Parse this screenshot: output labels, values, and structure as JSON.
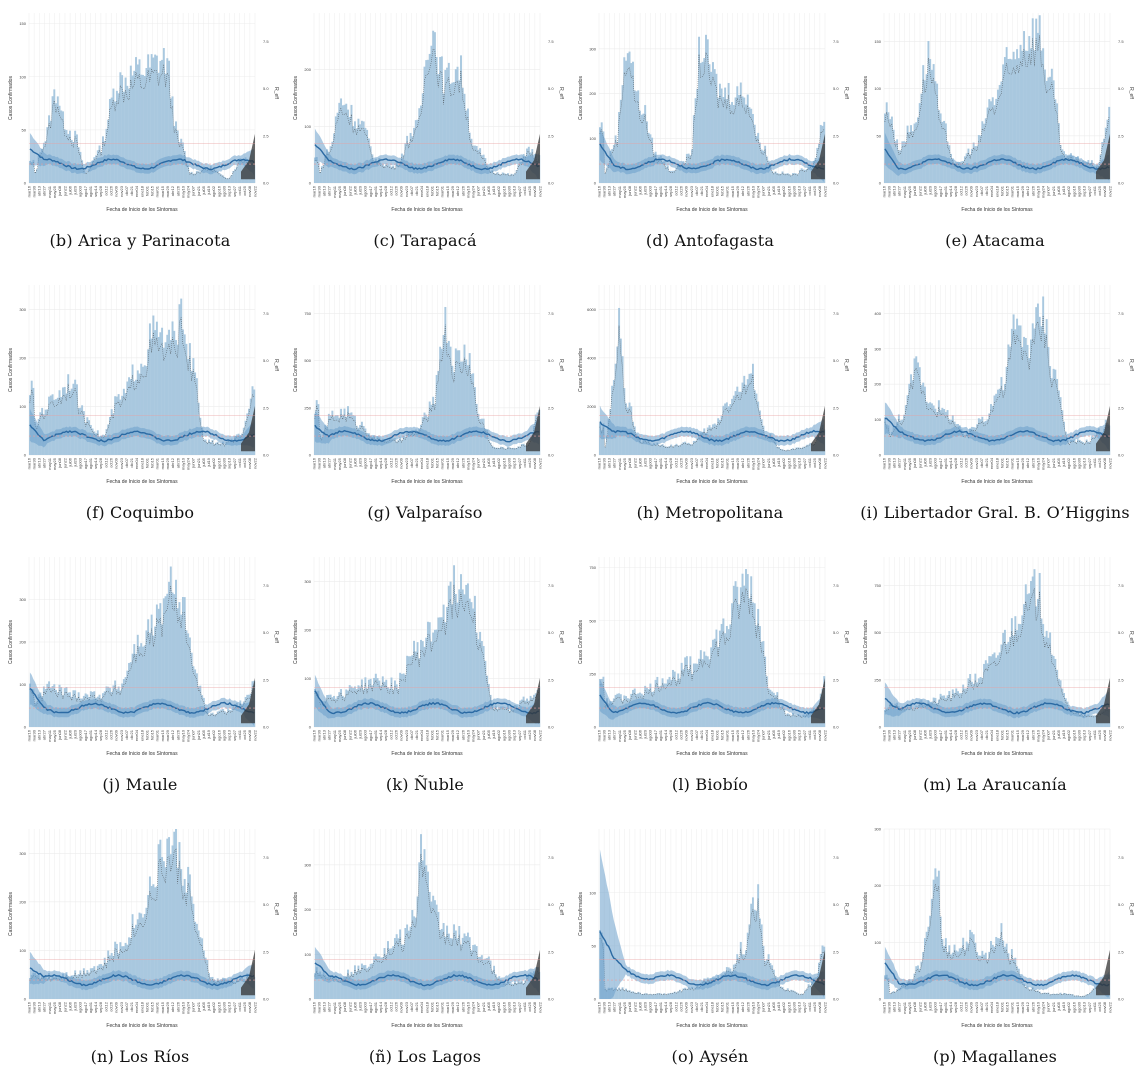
{
  "colors": {
    "bar_fill": "#a9c8df",
    "bar_stroke": "#8fb3d0",
    "band_fill": "#6a9fca",
    "rt_line": "#2b6aa3",
    "dotted_line": "#333333",
    "ref_line": "#e8a0a0",
    "grid": "#ececec"
  },
  "shared_axes": {
    "xlabel": "Fecha de Inicio de los Síntomas",
    "ylabel_left": "Casos Confirmados",
    "ylabel_right": "R_eff",
    "date_ticks": [
      "mar16",
      "mar30",
      "abr13",
      "abr27",
      "may11",
      "may25",
      "jun08",
      "jun22",
      "jul06",
      "jul20",
      "ago03",
      "ago17",
      "ago31",
      "sep14",
      "sep28",
      "oct12",
      "oct26",
      "nov09",
      "nov23",
      "dic07",
      "dic21",
      "ene04",
      "ene18",
      "feb01",
      "feb15",
      "mar01",
      "mar15",
      "mar29",
      "abr12",
      "abr26",
      "may10",
      "may24",
      "jun07",
      "jun21",
      "jul05",
      "jul19",
      "ago02",
      "ago16",
      "ago30",
      "sep13",
      "sep27",
      "oct11",
      "oct25",
      "nov08",
      "nov22"
    ],
    "right_ticks": [
      "0.0",
      "2.5",
      "5.0",
      "7.5"
    ]
  },
  "chart_data": [
    {
      "caption": "(b) Arica y Parinacota",
      "type": "bar",
      "left_ticks": [
        "0",
        "50",
        "100",
        "150"
      ],
      "ylim": [
        0,
        160
      ],
      "peaks": [
        [
          0.02,
          10
        ],
        [
          0.06,
          40
        ],
        [
          0.12,
          90
        ],
        [
          0.15,
          60
        ],
        [
          0.2,
          45
        ],
        [
          0.25,
          10
        ],
        [
          0.3,
          30
        ],
        [
          0.4,
          100
        ],
        [
          0.5,
          110
        ],
        [
          0.6,
          120
        ],
        [
          0.67,
          40
        ],
        [
          0.72,
          10
        ],
        [
          0.8,
          15
        ],
        [
          0.88,
          5
        ],
        [
          0.95,
          25
        ],
        [
          1,
          20
        ]
      ]
    },
    {
      "caption": "(c) Tarapacá",
      "type": "bar",
      "left_ticks": [
        "0",
        "100",
        "200"
      ],
      "ylim": [
        0,
        300
      ],
      "peaks": [
        [
          0.02,
          20
        ],
        [
          0.06,
          60
        ],
        [
          0.12,
          150
        ],
        [
          0.2,
          110
        ],
        [
          0.28,
          40
        ],
        [
          0.35,
          30
        ],
        [
          0.45,
          100
        ],
        [
          0.52,
          280
        ],
        [
          0.58,
          190
        ],
        [
          0.64,
          210
        ],
        [
          0.72,
          60
        ],
        [
          0.8,
          20
        ],
        [
          0.88,
          15
        ],
        [
          0.95,
          60
        ],
        [
          1,
          45
        ]
      ]
    },
    {
      "caption": "(d) Antofagasta",
      "type": "bar",
      "left_ticks": [
        "0",
        "100",
        "200",
        "300"
      ],
      "ylim": [
        0,
        380
      ],
      "peaks": [
        [
          0.02,
          25
        ],
        [
          0.07,
          100
        ],
        [
          0.12,
          320
        ],
        [
          0.18,
          180
        ],
        [
          0.26,
          60
        ],
        [
          0.32,
          30
        ],
        [
          0.4,
          60
        ],
        [
          0.45,
          310
        ],
        [
          0.55,
          210
        ],
        [
          0.65,
          210
        ],
        [
          0.72,
          90
        ],
        [
          0.78,
          25
        ],
        [
          0.86,
          20
        ],
        [
          0.94,
          40
        ],
        [
          1,
          130
        ]
      ]
    },
    {
      "caption": "(e) Atacama",
      "type": "bar",
      "left_ticks": [
        "0",
        "50",
        "100",
        "150"
      ],
      "ylim": [
        0,
        180
      ],
      "peaks": [
        [
          0.02,
          80
        ],
        [
          0.06,
          40
        ],
        [
          0.12,
          60
        ],
        [
          0.2,
          140
        ],
        [
          0.26,
          60
        ],
        [
          0.32,
          20
        ],
        [
          0.4,
          40
        ],
        [
          0.48,
          90
        ],
        [
          0.55,
          130
        ],
        [
          0.62,
          160
        ],
        [
          0.68,
          170
        ],
        [
          0.74,
          110
        ],
        [
          0.8,
          30
        ],
        [
          0.88,
          25
        ],
        [
          0.95,
          20
        ],
        [
          1,
          80
        ]
      ]
    },
    {
      "caption": "(f) Coquimbo",
      "type": "bar",
      "left_ticks": [
        "0",
        "100",
        "200",
        "300"
      ],
      "ylim": [
        0,
        350
      ],
      "peaks": [
        [
          0.02,
          60
        ],
        [
          0.06,
          100
        ],
        [
          0.12,
          130
        ],
        [
          0.18,
          160
        ],
        [
          0.25,
          80
        ],
        [
          0.32,
          40
        ],
        [
          0.4,
          120
        ],
        [
          0.5,
          200
        ],
        [
          0.55,
          260
        ],
        [
          0.62,
          240
        ],
        [
          0.68,
          290
        ],
        [
          0.73,
          180
        ],
        [
          0.78,
          30
        ],
        [
          0.86,
          25
        ],
        [
          0.94,
          40
        ],
        [
          1,
          140
        ]
      ]
    },
    {
      "caption": "(g) Valparaíso",
      "type": "bar",
      "left_ticks": [
        "0",
        "250",
        "500",
        "750"
      ],
      "ylim": [
        0,
        900
      ],
      "peaks": [
        [
          0.02,
          100
        ],
        [
          0.08,
          220
        ],
        [
          0.14,
          240
        ],
        [
          0.2,
          170
        ],
        [
          0.28,
          90
        ],
        [
          0.36,
          80
        ],
        [
          0.45,
          130
        ],
        [
          0.52,
          260
        ],
        [
          0.58,
          720
        ],
        [
          0.62,
          520
        ],
        [
          0.68,
          560
        ],
        [
          0.74,
          200
        ],
        [
          0.8,
          40
        ],
        [
          0.88,
          40
        ],
        [
          0.95,
          60
        ],
        [
          1,
          260
        ]
      ]
    },
    {
      "caption": "(h) Metropolitana",
      "type": "bar",
      "left_ticks": [
        "0",
        "2000",
        "4000",
        "6000"
      ],
      "ylim": [
        0,
        7000
      ],
      "peaks": [
        [
          0.02,
          300
        ],
        [
          0.06,
          2800
        ],
        [
          0.09,
          5800
        ],
        [
          0.12,
          2200
        ],
        [
          0.18,
          600
        ],
        [
          0.3,
          400
        ],
        [
          0.4,
          500
        ],
        [
          0.5,
          1200
        ],
        [
          0.58,
          2400
        ],
        [
          0.64,
          3000
        ],
        [
          0.68,
          3400
        ],
        [
          0.74,
          900
        ],
        [
          0.82,
          200
        ],
        [
          0.9,
          300
        ],
        [
          0.95,
          500
        ],
        [
          1,
          1200
        ]
      ]
    },
    {
      "caption": "(i) Libertador Gral. B. O’Higgins",
      "type": "bar",
      "left_ticks": [
        "0",
        "100",
        "200",
        "300",
        "400"
      ],
      "ylim": [
        0,
        480
      ],
      "peaks": [
        [
          0.02,
          60
        ],
        [
          0.08,
          120
        ],
        [
          0.14,
          260
        ],
        [
          0.2,
          160
        ],
        [
          0.28,
          120
        ],
        [
          0.36,
          60
        ],
        [
          0.44,
          110
        ],
        [
          0.52,
          200
        ],
        [
          0.58,
          370
        ],
        [
          0.64,
          330
        ],
        [
          0.7,
          420
        ],
        [
          0.76,
          230
        ],
        [
          0.82,
          40
        ],
        [
          0.9,
          40
        ],
        [
          0.96,
          70
        ],
        [
          1,
          100
        ]
      ]
    },
    {
      "caption": "(j) Maule",
      "type": "bar",
      "left_ticks": [
        "0",
        "100",
        "200",
        "300"
      ],
      "ylim": [
        0,
        400
      ],
      "peaks": [
        [
          0.02,
          60
        ],
        [
          0.08,
          100
        ],
        [
          0.14,
          90
        ],
        [
          0.2,
          80
        ],
        [
          0.3,
          80
        ],
        [
          0.4,
          100
        ],
        [
          0.48,
          200
        ],
        [
          0.54,
          240
        ],
        [
          0.6,
          290
        ],
        [
          0.64,
          360
        ],
        [
          0.68,
          300
        ],
        [
          0.74,
          120
        ],
        [
          0.8,
          30
        ],
        [
          0.88,
          40
        ],
        [
          0.95,
          60
        ],
        [
          1,
          100
        ]
      ]
    },
    {
      "caption": "(k) Ñuble",
      "type": "bar",
      "left_ticks": [
        "0",
        "100",
        "200",
        "300"
      ],
      "ylim": [
        0,
        350
      ],
      "peaks": [
        [
          0.02,
          60
        ],
        [
          0.1,
          70
        ],
        [
          0.2,
          90
        ],
        [
          0.28,
          100
        ],
        [
          0.36,
          90
        ],
        [
          0.44,
          160
        ],
        [
          0.52,
          200
        ],
        [
          0.58,
          260
        ],
        [
          0.64,
          310
        ],
        [
          0.7,
          300
        ],
        [
          0.74,
          180
        ],
        [
          0.8,
          40
        ],
        [
          0.88,
          40
        ],
        [
          0.95,
          60
        ],
        [
          1,
          80
        ]
      ]
    },
    {
      "caption": "(l) Biobío",
      "type": "bar",
      "left_ticks": [
        "0",
        "250",
        "500",
        "750"
      ],
      "ylim": [
        0,
        800
      ],
      "peaks": [
        [
          0.02,
          120
        ],
        [
          0.1,
          150
        ],
        [
          0.2,
          180
        ],
        [
          0.3,
          240
        ],
        [
          0.4,
          300
        ],
        [
          0.48,
          380
        ],
        [
          0.56,
          480
        ],
        [
          0.62,
          650
        ],
        [
          0.66,
          720
        ],
        [
          0.7,
          560
        ],
        [
          0.76,
          200
        ],
        [
          0.84,
          60
        ],
        [
          0.92,
          60
        ],
        [
          0.97,
          90
        ],
        [
          1,
          240
        ]
      ]
    },
    {
      "caption": "(m) La Araucanía",
      "type": "bar",
      "left_ticks": [
        "0",
        "250",
        "500",
        "750"
      ],
      "ylim": [
        0,
        900
      ],
      "peaks": [
        [
          0.02,
          120
        ],
        [
          0.1,
          110
        ],
        [
          0.2,
          140
        ],
        [
          0.3,
          180
        ],
        [
          0.4,
          260
        ],
        [
          0.48,
          360
        ],
        [
          0.55,
          520
        ],
        [
          0.62,
          680
        ],
        [
          0.68,
          760
        ],
        [
          0.72,
          560
        ],
        [
          0.78,
          240
        ],
        [
          0.84,
          80
        ],
        [
          0.92,
          60
        ],
        [
          1,
          100
        ]
      ]
    },
    {
      "caption": "(n) Los Ríos",
      "type": "bar",
      "left_ticks": [
        "0",
        "100",
        "200",
        "300"
      ],
      "ylim": [
        0,
        350
      ],
      "peaks": [
        [
          0.02,
          50
        ],
        [
          0.1,
          50
        ],
        [
          0.2,
          55
        ],
        [
          0.3,
          70
        ],
        [
          0.4,
          110
        ],
        [
          0.48,
          170
        ],
        [
          0.54,
          240
        ],
        [
          0.6,
          320
        ],
        [
          0.64,
          330
        ],
        [
          0.7,
          260
        ],
        [
          0.76,
          120
        ],
        [
          0.82,
          40
        ],
        [
          0.9,
          40
        ],
        [
          1,
          50
        ]
      ]
    },
    {
      "caption": "(ñ) Los Lagos",
      "type": "bar",
      "left_ticks": [
        "0",
        "100",
        "200",
        "300"
      ],
      "ylim": [
        0,
        380
      ],
      "peaks": [
        [
          0.02,
          60
        ],
        [
          0.1,
          50
        ],
        [
          0.2,
          70
        ],
        [
          0.3,
          110
        ],
        [
          0.38,
          140
        ],
        [
          0.44,
          180
        ],
        [
          0.48,
          360
        ],
        [
          0.52,
          210
        ],
        [
          0.58,
          160
        ],
        [
          0.64,
          150
        ],
        [
          0.7,
          130
        ],
        [
          0.76,
          90
        ],
        [
          0.84,
          40
        ],
        [
          0.92,
          40
        ],
        [
          1,
          70
        ]
      ]
    },
    {
      "caption": "(o) Aysén",
      "type": "bar",
      "left_ticks": [
        "0",
        "50",
        "100"
      ],
      "ylim": [
        0,
        160
      ],
      "peaks": [
        [
          0.02,
          10
        ],
        [
          0.1,
          10
        ],
        [
          0.2,
          5
        ],
        [
          0.3,
          5
        ],
        [
          0.4,
          10
        ],
        [
          0.5,
          20
        ],
        [
          0.58,
          30
        ],
        [
          0.64,
          50
        ],
        [
          0.7,
          100
        ],
        [
          0.74,
          40
        ],
        [
          0.82,
          10
        ],
        [
          0.9,
          5
        ],
        [
          0.96,
          20
        ],
        [
          1,
          60
        ]
      ]
    },
    {
      "caption": "(p) Magallanes",
      "type": "bar",
      "left_ticks": [
        "0",
        "100",
        "200",
        "300"
      ],
      "ylim": [
        0,
        300
      ],
      "peaks": [
        [
          0.02,
          10
        ],
        [
          0.1,
          30
        ],
        [
          0.16,
          60
        ],
        [
          0.2,
          160
        ],
        [
          0.23,
          250
        ],
        [
          0.26,
          100
        ],
        [
          0.32,
          90
        ],
        [
          0.38,
          110
        ],
        [
          0.44,
          80
        ],
        [
          0.52,
          120
        ],
        [
          0.56,
          80
        ],
        [
          0.64,
          20
        ],
        [
          0.72,
          10
        ],
        [
          0.8,
          10
        ],
        [
          0.88,
          5
        ],
        [
          1,
          40
        ]
      ]
    }
  ]
}
